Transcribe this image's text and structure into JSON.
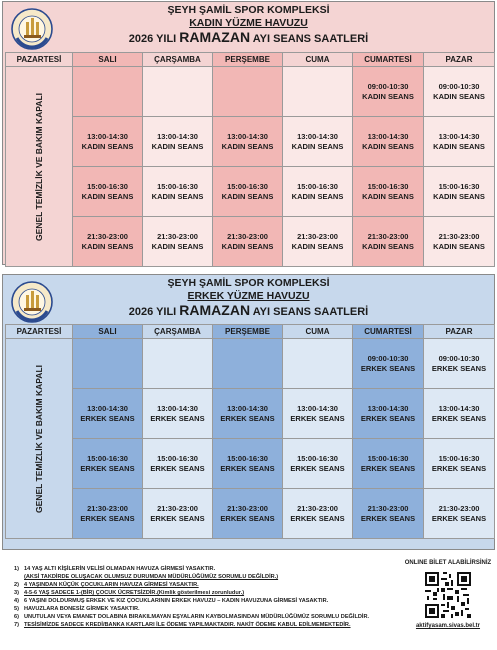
{
  "women": {
    "title": "ŞEYH ŞAMİL SPOR KOMPLEKSİ",
    "pool": "KADIN  YÜZME HAVUZU",
    "season_prefix": "2026 YILI",
    "season_main": "RAMAZAN",
    "season_suffix": "AYI SEANS SAATLERİ",
    "days": [
      "PAZARTESİ",
      "SALI",
      "ÇARŞAMBA",
      "PERŞEMBE",
      "CUMA",
      "CUMARTESİ",
      "PAZAR"
    ],
    "monday_text": "GENEL TEMİZLİK  VE BAKIM KAPALI",
    "rows": [
      [
        {
          "time": "",
          "label": ""
        },
        {
          "time": "",
          "label": ""
        },
        {
          "time": "",
          "label": ""
        },
        {
          "time": "",
          "label": ""
        },
        {
          "time": "09:00-10:30",
          "label": "KADIN SEANS"
        },
        {
          "time": "09:00-10:30",
          "label": "KADIN SEANS"
        }
      ],
      [
        {
          "time": "13:00-14:30",
          "label": "KADIN SEANS"
        },
        {
          "time": "13:00-14:30",
          "label": "KADIN SEANS"
        },
        {
          "time": "13:00-14:30",
          "label": "KADIN SEANS"
        },
        {
          "time": "13:00-14:30",
          "label": "KADIN SEANS"
        },
        {
          "time": "13:00-14:30",
          "label": "KADIN SEANS"
        },
        {
          "time": "13:00-14:30",
          "label": "KADIN SEANS"
        }
      ],
      [
        {
          "time": "15:00-16:30",
          "label": "KADIN SEANS"
        },
        {
          "time": "15:00-16:30",
          "label": "KADIN SEANS"
        },
        {
          "time": "15:00-16:30",
          "label": "KADIN SEANS"
        },
        {
          "time": "15:00-16:30",
          "label": "KADIN SEANS"
        },
        {
          "time": "15:00-16:30",
          "label": "KADIN SEANS"
        },
        {
          "time": "15:00-16:30",
          "label": "KADIN SEANS"
        }
      ],
      [
        {
          "time": "21:30-23:00",
          "label": "KADIN SEANS"
        },
        {
          "time": "21:30-23:00",
          "label": "KADIN SEANS"
        },
        {
          "time": "21:30-23:00",
          "label": "KADIN SEANS"
        },
        {
          "time": "21:30-23:00",
          "label": "KADIN SEANS"
        },
        {
          "time": "21:30-23:00",
          "label": "KADIN SEANS"
        },
        {
          "time": "21:30-23:00",
          "label": "KADIN SEANS"
        }
      ]
    ]
  },
  "men": {
    "title": "ŞEYH ŞAMİL SPOR KOMPLEKSİ",
    "pool": "ERKEK YÜZME HAVUZU",
    "season_prefix": "2026 YILI",
    "season_main": "RAMAZAN",
    "season_suffix": "AYI SEANS SAATLERİ",
    "days": [
      "PAZARTESİ",
      "SALI",
      "ÇARŞAMBA",
      "PERŞEMBE",
      "CUMA",
      "CUMARTESİ",
      "PAZAR"
    ],
    "monday_text": "GENEL TEMİZLİK  VE BAKIM KAPALI",
    "rows": [
      [
        {
          "time": "",
          "label": ""
        },
        {
          "time": "",
          "label": ""
        },
        {
          "time": "",
          "label": ""
        },
        {
          "time": "",
          "label": ""
        },
        {
          "time": "09:00-10:30",
          "label": "ERKEK SEANS"
        },
        {
          "time": "09:00-10:30",
          "label": "ERKEK SEANS"
        }
      ],
      [
        {
          "time": "13:00-14:30",
          "label": "ERKEK SEANS"
        },
        {
          "time": "13:00-14:30",
          "label": "ERKEK SEANS"
        },
        {
          "time": "13:00-14:30",
          "label": "ERKEK SEANS"
        },
        {
          "time": "13:00-14:30",
          "label": "ERKEK SEANS"
        },
        {
          "time": "13:00-14:30",
          "label": "ERKEK SEANS"
        },
        {
          "time": "13:00-14:30",
          "label": "ERKEK SEANS"
        }
      ],
      [
        {
          "time": "15:00-16:30",
          "label": "ERKEK SEANS"
        },
        {
          "time": "15:00-16:30",
          "label": "ERKEK SEANS"
        },
        {
          "time": "15:00-16:30",
          "label": "ERKEK SEANS"
        },
        {
          "time": "15:00-16:30",
          "label": "ERKEK SEANS"
        },
        {
          "time": "15:00-16:30",
          "label": "ERKEK SEANS"
        },
        {
          "time": "15:00-16:30",
          "label": "ERKEK SEANS"
        }
      ],
      [
        {
          "time": "21:30-23:00",
          "label": "ERKEK SEANS"
        },
        {
          "time": "21:30-23:00",
          "label": "ERKEK SEANS"
        },
        {
          "time": "21:30-23:00",
          "label": "ERKEK SEANS"
        },
        {
          "time": "21:30-23:00",
          "label": "ERKEK SEANS"
        },
        {
          "time": "21:30-23:00",
          "label": "ERKEK SEANS"
        },
        {
          "time": "21:30-23:00",
          "label": "ERKEK SEANS"
        }
      ]
    ]
  },
  "logo_text": "SİVAS BELEDİYESİ",
  "rules": [
    {
      "num": "1)",
      "text": "14 YAŞ ALTI KİŞİLERİN VELİSİ OLMADAN HAVUZA GİRMESİ YASAKTIR."
    },
    {
      "num": "",
      "text": "(AKSİ TAKDİRDE OLUŞACAK OLUMSUZ DURUMDAN MÜDÜRLÜĞÜMÜZ SORUMLU DEĞİLDİR.)"
    },
    {
      "num": "2)",
      "text": "4 YAŞINDAN KÜÇÜK ÇOCUKLARIN HAVUZA GİRMESİ YASAKTIR."
    },
    {
      "num": "3)",
      "text": "4-5-6 YAŞ  SADECE 1-(BİR) ÇOCUK ÜCRETSİZDİR.(Kimlik gösterilmesi zorunludur.)"
    },
    {
      "num": "4)",
      "text": "6 YAŞINI DOLDURMUŞ ERKEK VE KIZ ÇOCUKLARININ ERKEK HAVUZU – KADIN HAVUZUNA GİRMESİ YASAKTIR."
    },
    {
      "num": "5)",
      "text": "HAVUZLARA BONESİZ GİRMEK YASAKTIR."
    },
    {
      "num": "6)",
      "text": "UNUTULAN VEYA EMANET DOLABINA BIRAKILMAYAN EŞYALARIN KAYBOLMASINDAN MÜDÜRLÜĞÜMÜZ SORUMLU DEĞİLDİR."
    },
    {
      "num": "7)",
      "text": "TESİSİMİZDE SADECE KREDİ/BANKA KARTLARI İLE ÖDEME YAPILMAKTADIR. NAKİT ÖDEME KABUL EDİLMEMEKTEDİR."
    }
  ],
  "online": {
    "title": "ONLINE BİLET ALABİLİRSİNİZ",
    "url": "aktifyasam.sivas.bel.tr"
  },
  "colors": {
    "women_bg": "#f4d4d3",
    "women_highlight": "#f2b7b5",
    "men_bg": "#c7d8ec",
    "men_highlight": "#8eb0db"
  }
}
